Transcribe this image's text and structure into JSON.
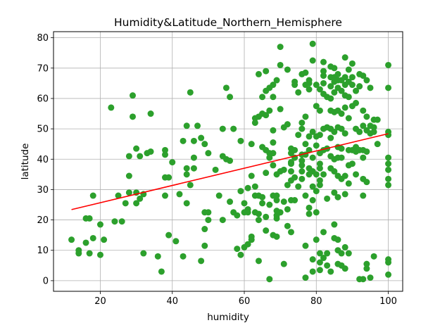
{
  "chart_data": {
    "type": "scatter",
    "title": "Humidity&Latitude_Northern_Hemisphere",
    "xlabel": "humidity",
    "ylabel": "latitude",
    "xlim": [
      7,
      104
    ],
    "ylim": [
      -3.5,
      82
    ],
    "xticks": [
      20,
      40,
      60,
      80,
      100
    ],
    "yticks": [
      0,
      10,
      20,
      30,
      40,
      50,
      60,
      70,
      80
    ],
    "grid": true,
    "point_color": "#2ca02c",
    "line_color": "#ff0000",
    "regression": {
      "x": [
        12,
        100
      ],
      "y": [
        23.4,
        48.4
      ]
    },
    "points": [
      [
        12,
        13.5
      ],
      [
        14,
        10
      ],
      [
        14,
        9
      ],
      [
        16,
        20.5
      ],
      [
        16,
        12.5
      ],
      [
        17,
        20.5
      ],
      [
        17,
        9
      ],
      [
        18,
        28
      ],
      [
        18,
        14
      ],
      [
        20,
        18.5
      ],
      [
        20,
        8.5
      ],
      [
        21,
        13.5
      ],
      [
        23,
        57
      ],
      [
        24,
        19.5
      ],
      [
        25,
        28
      ],
      [
        26,
        19.5
      ],
      [
        27,
        25.5
      ],
      [
        28,
        34.5
      ],
      [
        28,
        41
      ],
      [
        28,
        29
      ],
      [
        29,
        61
      ],
      [
        29,
        54
      ],
      [
        30,
        43.5
      ],
      [
        30,
        29
      ],
      [
        30,
        25.5
      ],
      [
        31,
        41
      ],
      [
        31,
        27
      ],
      [
        32,
        9
      ],
      [
        32,
        28.5
      ],
      [
        33,
        42
      ],
      [
        34,
        42.5
      ],
      [
        34,
        55
      ],
      [
        36,
        8
      ],
      [
        37,
        3
      ],
      [
        38,
        43
      ],
      [
        38,
        41.5
      ],
      [
        38,
        28
      ],
      [
        38,
        34
      ],
      [
        39,
        15
      ],
      [
        39,
        34
      ],
      [
        40,
        39
      ],
      [
        41,
        13
      ],
      [
        42,
        28.5
      ],
      [
        43,
        46
      ],
      [
        43,
        8
      ],
      [
        44,
        51
      ],
      [
        44,
        37
      ],
      [
        44,
        35
      ],
      [
        44,
        25.5
      ],
      [
        45,
        62
      ],
      [
        45,
        31.5
      ],
      [
        46,
        46
      ],
      [
        46,
        40.5
      ],
      [
        46,
        37
      ],
      [
        47,
        51
      ],
      [
        48,
        47
      ],
      [
        48,
        6.5
      ],
      [
        49,
        45
      ],
      [
        49,
        17
      ],
      [
        49,
        11.5
      ],
      [
        49,
        22.5
      ],
      [
        50,
        22.5
      ],
      [
        50,
        42
      ],
      [
        50,
        20
      ],
      [
        52,
        36.5
      ],
      [
        53,
        28
      ],
      [
        54,
        50
      ],
      [
        54,
        41
      ],
      [
        54,
        20
      ],
      [
        55,
        63.5
      ],
      [
        55,
        40
      ],
      [
        56,
        60.5
      ],
      [
        56,
        39.5
      ],
      [
        56,
        26
      ],
      [
        57,
        50
      ],
      [
        57,
        22.5
      ],
      [
        58,
        21.5
      ],
      [
        58,
        10.5
      ],
      [
        59,
        8.5
      ],
      [
        59,
        46
      ],
      [
        59,
        29.5
      ],
      [
        60,
        22.5
      ],
      [
        60,
        11
      ],
      [
        60,
        25.5
      ],
      [
        61,
        22.5
      ],
      [
        61,
        30.5
      ],
      [
        61,
        12
      ],
      [
        61,
        23.5
      ],
      [
        62,
        14.5
      ],
      [
        62,
        13.5
      ],
      [
        62,
        45
      ],
      [
        62,
        34.5
      ],
      [
        63,
        52
      ],
      [
        63,
        53.5
      ],
      [
        63,
        31
      ],
      [
        63,
        28
      ],
      [
        63,
        22.5
      ],
      [
        64,
        54
      ],
      [
        64,
        68
      ],
      [
        64,
        28
      ],
      [
        64,
        6.5
      ],
      [
        64,
        22
      ],
      [
        64,
        20
      ],
      [
        65,
        60.5
      ],
      [
        65,
        55
      ],
      [
        65,
        27.5
      ],
      [
        65,
        25.5
      ],
      [
        65,
        44
      ],
      [
        66,
        62.5
      ],
      [
        66,
        43
      ],
      [
        66,
        54.5
      ],
      [
        66,
        16.5
      ],
      [
        66,
        35.5
      ],
      [
        66,
        69
      ],
      [
        66,
        21
      ],
      [
        67,
        40.5
      ],
      [
        67,
        25
      ],
      [
        67,
        42
      ],
      [
        67,
        0.5
      ],
      [
        67,
        56
      ],
      [
        67,
        63.5
      ],
      [
        68,
        45.5
      ],
      [
        68,
        42
      ],
      [
        68,
        60.5
      ],
      [
        68,
        28
      ],
      [
        68,
        15
      ],
      [
        68,
        64.5
      ],
      [
        68,
        49.5
      ],
      [
        68,
        38
      ],
      [
        69,
        66
      ],
      [
        69,
        14.5
      ],
      [
        69,
        35
      ],
      [
        69,
        21.5
      ],
      [
        69,
        23
      ],
      [
        69,
        28
      ],
      [
        69,
        20.5
      ],
      [
        69,
        26.5
      ],
      [
        70,
        77
      ],
      [
        70,
        71
      ],
      [
        70,
        56.5
      ],
      [
        70,
        36
      ],
      [
        70,
        22.5
      ],
      [
        71,
        50.5
      ],
      [
        71,
        26
      ],
      [
        71,
        5.5
      ],
      [
        71,
        36.5
      ],
      [
        72,
        51.5
      ],
      [
        72,
        18
      ],
      [
        72,
        69.5
      ],
      [
        72,
        31.5
      ],
      [
        72,
        23.5
      ],
      [
        73,
        43.5
      ],
      [
        73,
        42
      ],
      [
        73,
        38.5
      ],
      [
        73,
        39
      ],
      [
        73,
        36
      ],
      [
        73,
        33
      ],
      [
        73,
        26.5
      ],
      [
        73,
        16
      ],
      [
        74,
        65.5
      ],
      [
        74,
        64.5
      ],
      [
        74,
        40.5
      ],
      [
        74,
        34
      ],
      [
        74,
        26.5
      ],
      [
        74,
        43
      ],
      [
        75,
        48
      ],
      [
        75,
        62
      ],
      [
        75,
        31
      ],
      [
        76,
        68
      ],
      [
        76,
        52
      ],
      [
        76,
        50
      ],
      [
        76,
        41.5
      ],
      [
        76,
        39.5
      ],
      [
        76,
        38
      ],
      [
        76,
        36
      ],
      [
        76,
        33.5
      ],
      [
        77,
        68.5
      ],
      [
        77,
        64.5
      ],
      [
        77,
        54
      ],
      [
        77,
        45
      ],
      [
        77,
        41.5
      ],
      [
        77,
        1
      ],
      [
        77,
        11.5
      ],
      [
        77,
        28
      ],
      [
        78,
        66
      ],
      [
        78,
        65
      ],
      [
        78,
        63
      ],
      [
        78,
        47.5
      ],
      [
        78,
        43
      ],
      [
        78,
        37
      ],
      [
        78,
        35
      ],
      [
        78,
        24
      ],
      [
        78,
        22
      ],
      [
        79,
        78
      ],
      [
        79,
        72.5
      ],
      [
        79,
        49
      ],
      [
        79,
        40.5
      ],
      [
        79,
        36
      ],
      [
        79,
        31
      ],
      [
        79,
        26.5
      ],
      [
        79,
        7
      ],
      [
        79,
        3
      ],
      [
        80,
        64.5
      ],
      [
        80,
        57.5
      ],
      [
        80,
        47.5
      ],
      [
        80,
        44.5
      ],
      [
        80,
        35
      ],
      [
        80,
        29.5
      ],
      [
        80,
        22.5
      ],
      [
        80,
        13.5
      ],
      [
        81,
        63
      ],
      [
        81,
        56
      ],
      [
        81,
        48
      ],
      [
        81,
        42
      ],
      [
        81,
        38.5
      ],
      [
        81,
        37
      ],
      [
        81,
        33
      ],
      [
        81,
        31.5
      ],
      [
        81,
        9
      ],
      [
        81,
        6
      ],
      [
        81,
        3.5
      ],
      [
        82,
        72
      ],
      [
        82,
        69
      ],
      [
        82,
        67.5
      ],
      [
        82,
        65
      ],
      [
        82,
        61.5
      ],
      [
        82,
        50
      ],
      [
        82,
        43
      ],
      [
        82,
        35
      ],
      [
        82,
        16
      ],
      [
        82,
        7.5
      ],
      [
        83,
        60.5
      ],
      [
        83,
        50.5
      ],
      [
        83,
        43.5
      ],
      [
        83,
        27
      ],
      [
        83,
        9
      ],
      [
        83,
        5
      ],
      [
        84,
        70.5
      ],
      [
        84,
        67
      ],
      [
        84,
        64
      ],
      [
        84,
        60
      ],
      [
        84,
        56
      ],
      [
        84,
        50
      ],
      [
        84,
        47
      ],
      [
        84,
        41
      ],
      [
        84,
        37
      ],
      [
        84,
        3
      ],
      [
        85,
        70
      ],
      [
        85,
        67
      ],
      [
        85,
        65.5
      ],
      [
        85,
        62
      ],
      [
        85,
        55.5
      ],
      [
        85,
        49
      ],
      [
        85,
        40
      ],
      [
        85,
        36
      ],
      [
        85,
        29
      ],
      [
        85,
        18.5
      ],
      [
        85,
        14
      ],
      [
        86,
        68
      ],
      [
        86,
        66
      ],
      [
        86,
        63.5
      ],
      [
        86,
        56
      ],
      [
        86,
        50.5
      ],
      [
        86,
        44
      ],
      [
        86,
        40.5
      ],
      [
        86,
        34.5
      ],
      [
        86,
        27.5
      ],
      [
        86,
        13.5
      ],
      [
        86,
        10
      ],
      [
        86,
        5.5
      ],
      [
        87,
        66
      ],
      [
        87,
        62.5
      ],
      [
        87,
        55
      ],
      [
        87,
        50
      ],
      [
        87,
        43.5
      ],
      [
        87,
        40.5
      ],
      [
        87,
        33.5
      ],
      [
        87,
        9
      ],
      [
        87,
        5
      ],
      [
        88,
        73.5
      ],
      [
        88,
        67
      ],
      [
        88,
        64.5
      ],
      [
        88,
        61
      ],
      [
        88,
        57
      ],
      [
        88,
        48.5
      ],
      [
        88,
        34.5
      ],
      [
        88,
        28.5
      ],
      [
        88,
        11
      ],
      [
        88,
        4
      ],
      [
        89,
        69.5
      ],
      [
        89,
        65.5
      ],
      [
        89,
        60.5
      ],
      [
        89,
        53.5
      ],
      [
        89,
        43
      ],
      [
        89,
        38
      ],
      [
        89,
        32
      ],
      [
        89,
        9
      ],
      [
        90,
        71.5
      ],
      [
        90,
        67
      ],
      [
        90,
        64.5
      ],
      [
        90,
        57.5
      ],
      [
        90,
        43
      ],
      [
        90,
        38.5
      ],
      [
        91,
        62.5
      ],
      [
        91,
        58.5
      ],
      [
        91,
        50
      ],
      [
        91,
        44
      ],
      [
        91,
        42.5
      ],
      [
        91,
        35
      ],
      [
        92,
        68
      ],
      [
        92,
        64
      ],
      [
        92,
        49
      ],
      [
        92,
        43
      ],
      [
        92,
        0.5
      ],
      [
        93,
        67.5
      ],
      [
        93,
        56
      ],
      [
        93,
        51
      ],
      [
        93,
        43
      ],
      [
        93,
        40.5
      ],
      [
        93,
        33.5
      ],
      [
        93,
        28
      ],
      [
        93,
        0.5
      ],
      [
        94,
        66
      ],
      [
        94,
        54
      ],
      [
        94,
        49.5
      ],
      [
        94,
        42.5
      ],
      [
        94,
        32.5
      ],
      [
        94,
        5.5
      ],
      [
        94,
        4
      ],
      [
        95,
        63.5
      ],
      [
        95,
        51
      ],
      [
        95,
        48.5
      ],
      [
        95,
        1
      ],
      [
        96,
        53
      ],
      [
        96,
        50.5
      ],
      [
        96,
        49
      ],
      [
        96,
        8
      ],
      [
        97,
        53
      ],
      [
        97,
        45
      ],
      [
        100,
        71
      ],
      [
        100,
        63.5
      ],
      [
        100,
        49
      ],
      [
        100,
        48
      ],
      [
        100,
        40.5
      ],
      [
        100,
        38.5
      ],
      [
        100,
        36.5
      ],
      [
        100,
        33.5
      ],
      [
        100,
        31.5
      ],
      [
        100,
        7
      ],
      [
        100,
        6
      ],
      [
        100,
        2
      ]
    ]
  }
}
